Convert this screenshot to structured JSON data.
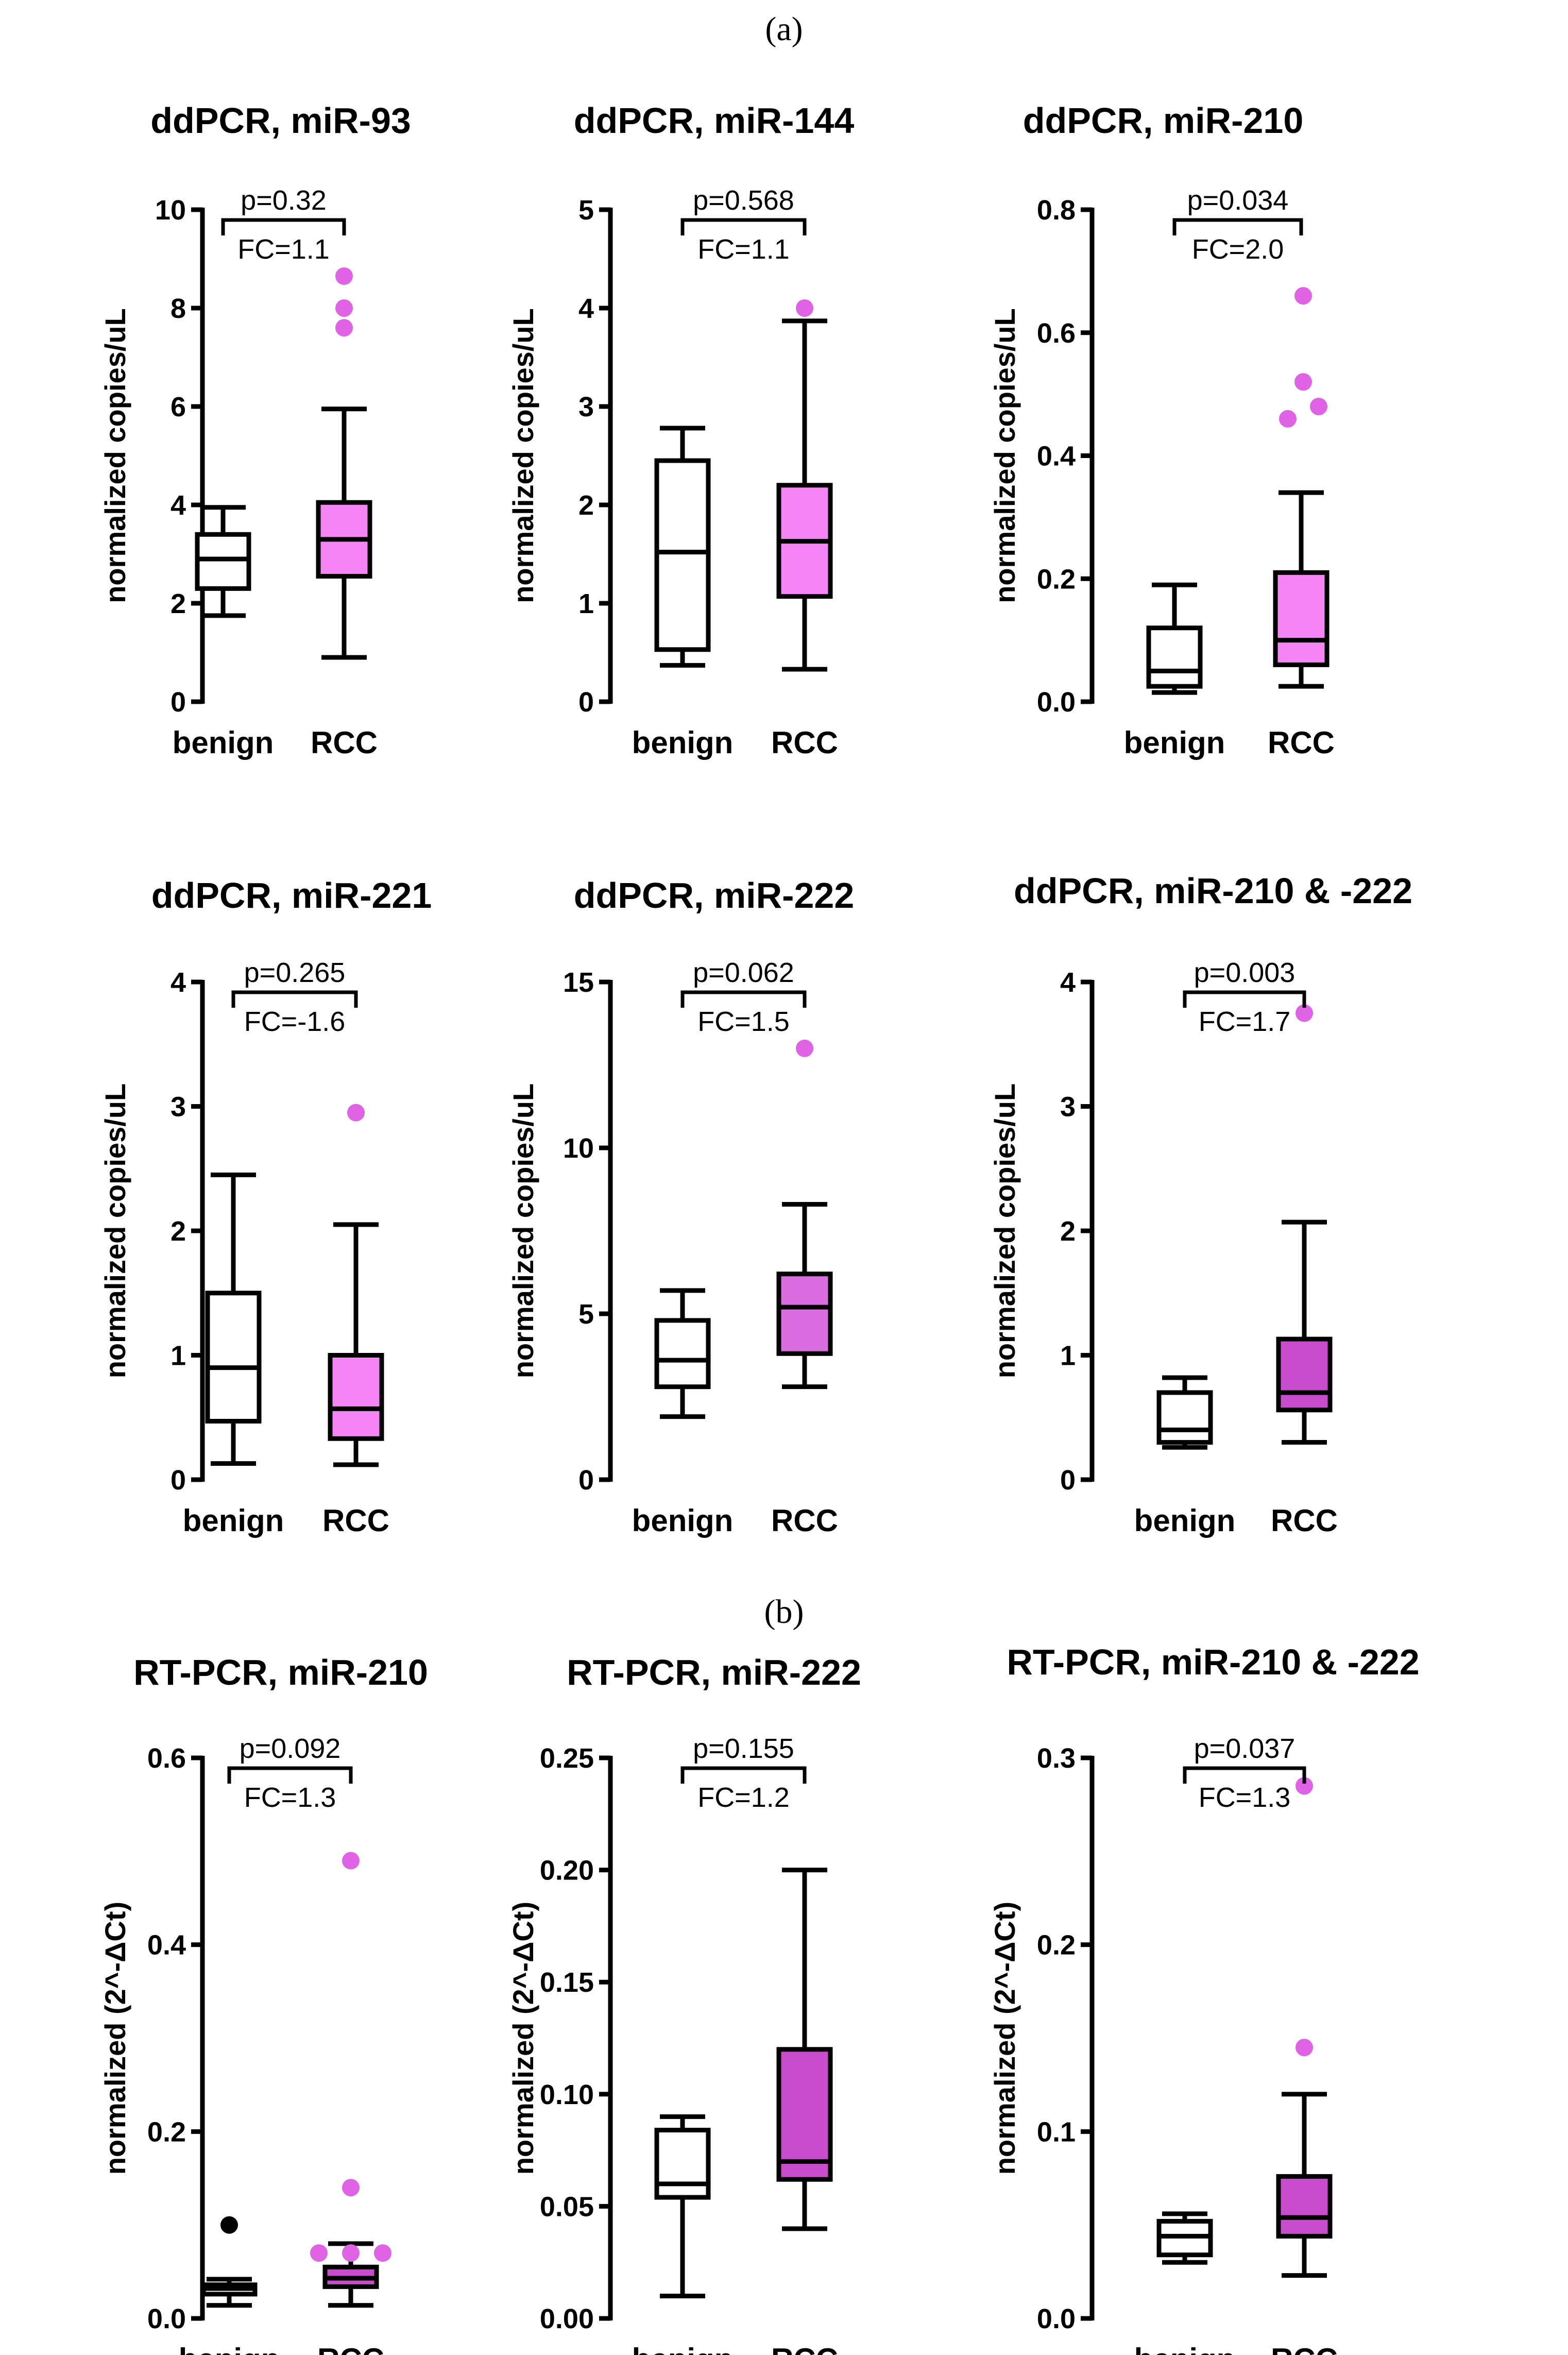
{
  "figure": {
    "section_labels": [
      "(a)",
      "(b)"
    ]
  },
  "colors": {
    "light_pink": "#f585f5",
    "mid_pink": "#da6ddf",
    "dark_magenta": "#c84dcc",
    "outlier_pink": "#df63e4",
    "outlier_black": "#000000",
    "benign_fill": "#ffffff",
    "stroke": "#000000"
  },
  "chart_data": [
    {
      "id": "a1",
      "type": "box",
      "title": "ddPCR, miR-93",
      "ylabel": "normalized copies/uL",
      "ylim": [
        0,
        10
      ],
      "yticks": [
        "0",
        "2",
        "4",
        "6",
        "8",
        "10"
      ],
      "ytick_values": [
        0,
        2,
        4,
        6,
        8,
        10
      ],
      "categories": [
        "benign",
        "RCC"
      ],
      "stat_p": "p=0.32",
      "stat_fc": "FC=1.1",
      "rcc_color": "light_pink",
      "groups": [
        {
          "name": "benign",
          "min": 1.75,
          "q1": 2.3,
          "median": 2.9,
          "q3": 3.4,
          "max": 3.95,
          "outliers": []
        },
        {
          "name": "RCC",
          "min": 0.9,
          "q1": 2.55,
          "median": 3.3,
          "q3": 4.05,
          "max": 5.95,
          "outliers": [
            7.6,
            8.0,
            8.65
          ]
        }
      ]
    },
    {
      "id": "a2",
      "type": "box",
      "title": "ddPCR, miR-144",
      "ylabel": "normalized copies/uL",
      "ylim": [
        0,
        5
      ],
      "yticks": [
        "0",
        "1",
        "2",
        "3",
        "4",
        "5"
      ],
      "ytick_values": [
        0,
        1,
        2,
        3,
        4,
        5
      ],
      "categories": [
        "benign",
        "RCC"
      ],
      "stat_p": "p=0.568",
      "stat_fc": "FC=1.1",
      "rcc_color": "light_pink",
      "groups": [
        {
          "name": "benign",
          "min": 0.37,
          "q1": 0.53,
          "median": 1.52,
          "q3": 2.45,
          "max": 2.78,
          "outliers": []
        },
        {
          "name": "RCC",
          "min": 0.33,
          "q1": 1.07,
          "median": 1.63,
          "q3": 2.2,
          "max": 3.87,
          "outliers": [
            4.0
          ]
        }
      ]
    },
    {
      "id": "a3",
      "type": "box",
      "title": "ddPCR, miR-210",
      "ylabel": "normalized copies/uL",
      "ylim": [
        0,
        0.8
      ],
      "yticks": [
        "0.0",
        "0.2",
        "0.4",
        "0.6",
        "0.8"
      ],
      "ytick_values": [
        0,
        0.2,
        0.4,
        0.6,
        0.8
      ],
      "categories": [
        "benign",
        "RCC"
      ],
      "stat_p": "p=0.034",
      "stat_fc": "FC=2.0",
      "rcc_color": "light_pink",
      "groups": [
        {
          "name": "benign",
          "min": 0.015,
          "q1": 0.025,
          "median": 0.05,
          "q3": 0.12,
          "max": 0.19,
          "outliers": []
        },
        {
          "name": "RCC",
          "min": 0.025,
          "q1": 0.06,
          "median": 0.1,
          "q3": 0.21,
          "max": 0.34,
          "outliers": [
            0.46,
            0.48,
            0.52,
            0.66
          ]
        }
      ]
    },
    {
      "id": "a4",
      "type": "box",
      "title": "ddPCR, miR-221",
      "ylabel": "normalized copies/uL",
      "ylim": [
        0,
        4
      ],
      "yticks": [
        "0",
        "1",
        "2",
        "3",
        "4"
      ],
      "ytick_values": [
        0,
        1,
        2,
        3,
        4
      ],
      "categories": [
        "benign",
        "RCC"
      ],
      "stat_p": "p=0.265",
      "stat_fc": "FC=-1.6",
      "rcc_color": "light_pink",
      "groups": [
        {
          "name": "benign",
          "min": 0.13,
          "q1": 0.47,
          "median": 0.9,
          "q3": 1.5,
          "max": 2.45,
          "outliers": []
        },
        {
          "name": "RCC",
          "min": 0.12,
          "q1": 0.33,
          "median": 0.57,
          "q3": 1.0,
          "max": 2.05,
          "outliers": [
            2.95
          ]
        }
      ]
    },
    {
      "id": "a5",
      "type": "box",
      "title": "ddPCR, miR-222",
      "ylabel": "normalized copies/uL",
      "ylim": [
        0,
        15
      ],
      "yticks": [
        "0",
        "5",
        "10",
        "15"
      ],
      "ytick_values": [
        0,
        5,
        10,
        15
      ],
      "categories": [
        "benign",
        "RCC"
      ],
      "stat_p": "p=0.062",
      "stat_fc": "FC=1.5",
      "rcc_color": "mid_pink",
      "groups": [
        {
          "name": "benign",
          "min": 1.9,
          "q1": 2.8,
          "median": 3.6,
          "q3": 4.8,
          "max": 5.7,
          "outliers": []
        },
        {
          "name": "RCC",
          "min": 2.8,
          "q1": 3.8,
          "median": 5.2,
          "q3": 6.2,
          "max": 8.3,
          "outliers": [
            13.0
          ]
        }
      ]
    },
    {
      "id": "a6",
      "type": "box",
      "title": "ddPCR, miR-210 & -222",
      "ylabel": "normalized copies/uL",
      "ylim": [
        0,
        4
      ],
      "yticks": [
        "0",
        "1",
        "2",
        "3",
        "4"
      ],
      "ytick_values": [
        0,
        1,
        2,
        3,
        4
      ],
      "categories": [
        "benign",
        "RCC"
      ],
      "stat_p": "p=0.003",
      "stat_fc": "FC=1.7",
      "rcc_color": "dark_magenta",
      "groups": [
        {
          "name": "benign",
          "min": 0.26,
          "q1": 0.3,
          "median": 0.4,
          "q3": 0.7,
          "max": 0.82,
          "outliers": []
        },
        {
          "name": "RCC",
          "min": 0.3,
          "q1": 0.56,
          "median": 0.7,
          "q3": 1.13,
          "max": 2.07,
          "outliers": [
            3.75
          ]
        }
      ]
    },
    {
      "id": "b1",
      "type": "box",
      "title": "RT-PCR, miR-210",
      "ylabel": "normalized (2^-ΔCt)",
      "ylim": [
        0,
        0.6
      ],
      "yticks": [
        "0.0",
        "0.2",
        "0.4",
        "0.6"
      ],
      "ytick_values": [
        0,
        0.2,
        0.4,
        0.6
      ],
      "categories": [
        "benign",
        "RCC"
      ],
      "stat_p": "p=0.092",
      "stat_fc": "FC=1.3",
      "rcc_color": "dark_magenta",
      "groups": [
        {
          "name": "benign",
          "min": 0.014,
          "q1": 0.026,
          "median": 0.032,
          "q3": 0.036,
          "max": 0.042,
          "outliers": [
            0.1
          ],
          "outlier_color": "outlier_black"
        },
        {
          "name": "RCC",
          "min": 0.014,
          "q1": 0.034,
          "median": 0.043,
          "q3": 0.055,
          "max": 0.08,
          "outliers": [
            0.07,
            0.07,
            0.07,
            0.14,
            0.49
          ]
        }
      ]
    },
    {
      "id": "b2",
      "type": "box",
      "title": "RT-PCR, miR-222",
      "ylabel": "normalized (2^-ΔCt)",
      "ylim": [
        0,
        0.25
      ],
      "yticks": [
        "0.00",
        "0.05",
        "0.10",
        "0.15",
        "0.20",
        "0.25"
      ],
      "ytick_values": [
        0,
        0.05,
        0.1,
        0.15,
        0.2,
        0.25
      ],
      "categories": [
        "benign",
        "RCC"
      ],
      "stat_p": "p=0.155",
      "stat_fc": "FC=1.2",
      "rcc_color": "dark_magenta",
      "groups": [
        {
          "name": "benign",
          "min": 0.01,
          "q1": 0.054,
          "median": 0.06,
          "q3": 0.084,
          "max": 0.09,
          "outliers": []
        },
        {
          "name": "RCC",
          "min": 0.04,
          "q1": 0.062,
          "median": 0.07,
          "q3": 0.12,
          "max": 0.2,
          "outliers": []
        }
      ]
    },
    {
      "id": "b3",
      "type": "box",
      "title": "RT-PCR, miR-210 & -222",
      "ylabel": "normalized (2^-ΔCt)",
      "ylim": [
        0,
        0.3
      ],
      "yticks": [
        "0.0",
        "0.1",
        "0.2",
        "0.3"
      ],
      "ytick_values": [
        0,
        0.1,
        0.2,
        0.3
      ],
      "categories": [
        "benign",
        "RCC"
      ],
      "stat_p": "p=0.037",
      "stat_fc": "FC=1.3",
      "rcc_color": "dark_magenta",
      "groups": [
        {
          "name": "benign",
          "min": 0.03,
          "q1": 0.034,
          "median": 0.044,
          "q3": 0.052,
          "max": 0.056,
          "outliers": []
        },
        {
          "name": "RCC",
          "min": 0.023,
          "q1": 0.044,
          "median": 0.054,
          "q3": 0.076,
          "max": 0.12,
          "outliers": [
            0.145,
            0.285
          ]
        }
      ]
    }
  ]
}
